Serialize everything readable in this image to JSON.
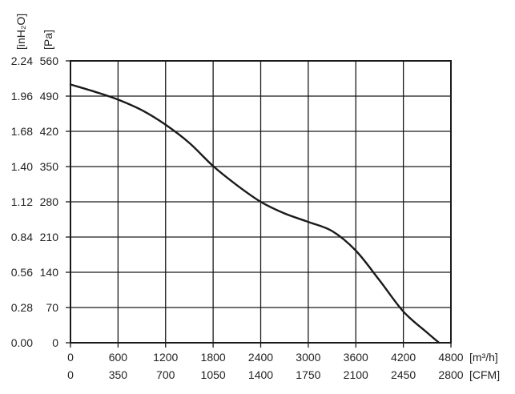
{
  "chart_data": {
    "type": "line",
    "y_unit_primary": "[inH₂O]",
    "y_unit_secondary": "[Pa]",
    "x_unit_primary": "[m³/h]",
    "x_unit_secondary": "[CFM]",
    "x_primary_ticks": [
      "0",
      "600",
      "1200",
      "1800",
      "2400",
      "3000",
      "3600",
      "4200",
      "4800"
    ],
    "x_secondary_ticks": [
      "0",
      "350",
      "700",
      "1050",
      "1400",
      "1750",
      "2100",
      "2450",
      "2800"
    ],
    "y_primary_ticks": [
      "0.00",
      "0.28",
      "0.56",
      "0.84",
      "1.12",
      "1.40",
      "1.68",
      "1.96",
      "2.24"
    ],
    "y_secondary_ticks": [
      "0",
      "70",
      "140",
      "210",
      "280",
      "350",
      "420",
      "490",
      "560"
    ],
    "xlim": [
      0,
      4800
    ],
    "ylim": [
      0,
      560
    ],
    "grid": true,
    "series": [
      {
        "x": [
          0,
          300,
          600,
          900,
          1200,
          1500,
          1800,
          2100,
          2400,
          2700,
          3000,
          3300,
          3600,
          3900,
          4200,
          4500,
          4650
        ],
        "y": [
          513,
          499,
          483,
          462,
          433,
          397,
          351,
          313,
          280,
          257,
          240,
          222,
          183,
          124,
          62,
          20,
          0
        ]
      }
    ]
  }
}
